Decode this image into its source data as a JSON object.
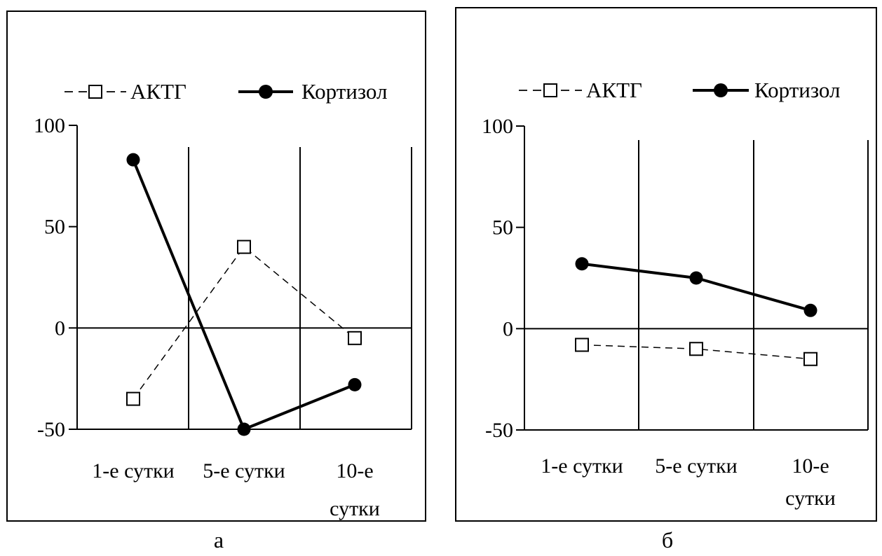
{
  "chart_data": [
    {
      "type": "line",
      "panel_label": "а",
      "categories": [
        "1-е сутки",
        "5-е сутки",
        "10-е сутки"
      ],
      "category_tick_lines": [
        [
          "1-е сутки"
        ],
        [
          "5-е сутки"
        ],
        [
          "10-е",
          "сутки"
        ]
      ],
      "ylim": [
        -50,
        100
      ],
      "yticks": [
        -50,
        0,
        50,
        100
      ],
      "legend_position": "top",
      "grid": "vertical category separators",
      "series": [
        {
          "name": "АКТГ",
          "values": [
            -35,
            40,
            -5
          ],
          "style": "dashed",
          "marker": "open-square",
          "color": "#000000"
        },
        {
          "name": "Кортизол",
          "values": [
            83,
            -50,
            -28
          ],
          "style": "solid-bold",
          "marker": "filled-circle",
          "color": "#000000"
        }
      ]
    },
    {
      "type": "line",
      "panel_label": "б",
      "categories": [
        "1-е сутки",
        "5-е сутки",
        "10-е сутки"
      ],
      "category_tick_lines": [
        [
          "1-е сутки"
        ],
        [
          "5-е сутки"
        ],
        [
          "10-е",
          "сутки"
        ]
      ],
      "ylim": [
        -50,
        100
      ],
      "yticks": [
        -50,
        0,
        50,
        100
      ],
      "legend_position": "top",
      "grid": "vertical category separators",
      "series": [
        {
          "name": "АКТГ",
          "values": [
            -8,
            -10,
            -15
          ],
          "style": "dashed",
          "marker": "open-square",
          "color": "#000000"
        },
        {
          "name": "Кортизол",
          "values": [
            32,
            25,
            9
          ],
          "style": "solid-bold",
          "marker": "filled-circle",
          "color": "#000000"
        }
      ]
    }
  ]
}
